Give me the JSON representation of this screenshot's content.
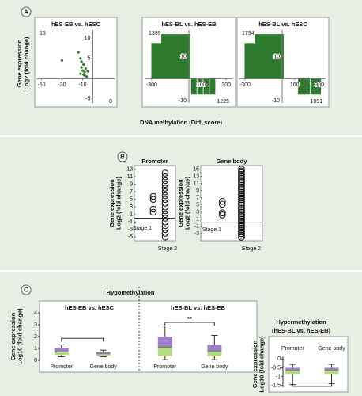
{
  "panels": [
    {
      "label": "A",
      "ylabel": [
        "Gene expression",
        "Log2 (fold change)"
      ],
      "xlabel": "DNA methylation (Diff_score)"
    },
    {
      "label": "B"
    },
    {
      "label": "C"
    }
  ],
  "chart_data": [
    {
      "type": "scatter",
      "title": "hES-EB vs. hESC",
      "xlim": [
        -55,
        22
      ],
      "ylim": [
        -6,
        12
      ],
      "xticks": [
        -50,
        -30,
        -10
      ],
      "yticks": [
        10,
        5,
        -5
      ],
      "color": "#2e7a2e",
      "x": [
        -14,
        -12,
        -11,
        -9,
        -10,
        -8,
        -7,
        -9,
        -6,
        -12,
        -30,
        -5,
        -8,
        -11
      ],
      "y": [
        6.5,
        5,
        4.2,
        3.5,
        2,
        1.6,
        2.5,
        1,
        0.5,
        1.2,
        4.5,
        1.8,
        0.8,
        2.8
      ],
      "annotations": [
        {
          "text": "15",
          "corner": "upper-left"
        },
        {
          "text": "0",
          "corner": "lower-right"
        }
      ]
    },
    {
      "type": "scatter",
      "title": "hES-BL vs. hES-EB",
      "xlim": [
        -350,
        350
      ],
      "ylim": [
        -11,
        22
      ],
      "xticks": [
        -300,
        100,
        300
      ],
      "yticks": [
        10,
        -10
      ],
      "color": "#2e7a2e",
      "x": [
        -280,
        -280,
        -280,
        -280,
        -240,
        -240,
        -240,
        -240,
        -200,
        -200,
        -200,
        -200,
        -200,
        -160,
        -160,
        -160,
        -160,
        -160,
        -120,
        -120,
        -120,
        -120,
        -120,
        -80,
        -80,
        -80,
        -80,
        -80,
        -40,
        -40,
        -40,
        -40,
        -40,
        -10,
        -10,
        -10,
        -10,
        -10,
        40,
        40,
        90,
        90,
        140,
        140,
        190,
        190
      ],
      "y": [
        2,
        6,
        10,
        14,
        2,
        6,
        10,
        14,
        2,
        6,
        10,
        14,
        18,
        2,
        6,
        10,
        14,
        18,
        2,
        6,
        10,
        14,
        18,
        2,
        6,
        10,
        14,
        18,
        2,
        6,
        10,
        14,
        18,
        2,
        6,
        10,
        14,
        18,
        -2,
        -5,
        -2,
        -5,
        -2,
        -5,
        -2,
        -5
      ],
      "annotations": [
        {
          "text": "1399",
          "corner": "upper-left"
        },
        {
          "text": "1225",
          "corner": "lower-right"
        }
      ]
    },
    {
      "type": "scatter",
      "title": "hES-BL vs. hESC",
      "xlim": [
        -350,
        350
      ],
      "ylim": [
        -11,
        22
      ],
      "xticks": [
        -300,
        100,
        300
      ],
      "yticks": [
        10,
        -10
      ],
      "color": "#2e7a2e",
      "x": [
        -280,
        -280,
        -280,
        -280,
        -240,
        -240,
        -240,
        -240,
        -200,
        -200,
        -200,
        -200,
        -200,
        -160,
        -160,
        -160,
        -160,
        -160,
        -120,
        -120,
        -120,
        -120,
        -120,
        -80,
        -80,
        -80,
        -80,
        -80,
        -40,
        -40,
        -40,
        -40,
        -40,
        -10,
        -10,
        -10,
        -10,
        -10,
        150,
        150,
        200,
        200,
        250,
        250,
        290,
        290
      ],
      "y": [
        2,
        6,
        10,
        14,
        2,
        6,
        10,
        14,
        2,
        6,
        10,
        14,
        18,
        2,
        6,
        10,
        14,
        18,
        2,
        6,
        10,
        14,
        18,
        2,
        6,
        10,
        14,
        18,
        2,
        6,
        10,
        14,
        18,
        2,
        6,
        10,
        14,
        18,
        -2,
        -5,
        -2,
        -5,
        -2,
        -5,
        -2,
        -5
      ],
      "annotations": [
        {
          "text": "1734",
          "corner": "upper-left"
        },
        {
          "text": "1091",
          "corner": "lower-right"
        }
      ]
    },
    {
      "type": "strip",
      "title": "Promoter",
      "ylabel": [
        "Gene expression",
        "Log2 (fold change)"
      ],
      "ylim": [
        -6,
        14
      ],
      "yticks": [
        13,
        11,
        9,
        7,
        5,
        3,
        1,
        -1,
        -3,
        -5
      ],
      "categories": [
        "Stage 1",
        "Stage 2"
      ],
      "values": [
        [
          5.8,
          5,
          2.4,
          1.6
        ],
        [
          -5,
          -4,
          -3,
          -2,
          -1,
          0,
          1,
          2,
          3,
          4,
          5,
          6,
          7,
          8,
          9,
          10,
          11,
          12
        ]
      ]
    },
    {
      "type": "strip",
      "title": "Gene body",
      "ylabel": [
        "Gene expression",
        "Log2 (fold change)"
      ],
      "ylim": [
        -5,
        16
      ],
      "yticks": [
        15,
        13,
        11,
        9,
        7,
        5,
        3,
        1,
        -1,
        -3
      ],
      "categories": [
        "Stage 1",
        "Stage 2"
      ],
      "values": [
        [
          6,
          5.2,
          2.8,
          2.2
        ],
        [
          -4,
          -3.5,
          -3,
          -2.5,
          -2,
          -1.5,
          -1,
          -0.5,
          0,
          0.5,
          1,
          1.5,
          2,
          2.5,
          3,
          3.5,
          4,
          4.5,
          5,
          5.5,
          6,
          6.5,
          7,
          7.5,
          8,
          8.5,
          9,
          9.5,
          10,
          10.5,
          11,
          11.5,
          12,
          12.5,
          13,
          13.5,
          14,
          14.5,
          15
        ]
      ]
    },
    {
      "type": "box",
      "title": "Hypomethylation",
      "ylabel": [
        "Gene expression",
        "Log10 (fold change)"
      ],
      "ylim": [
        0,
        4
      ],
      "yticks": [
        0,
        1,
        2,
        3,
        4
      ],
      "colors": [
        "#9b7fc8",
        "#b2dc84"
      ],
      "groups": [
        {
          "title": "hES-EB vs. hESC",
          "categories": [
            "Promoter",
            "Gene body"
          ],
          "boxes": [
            {
              "min": 0.3,
              "q1": 0.45,
              "median": 0.7,
              "q3": 1.0,
              "max": 1.3
            },
            {
              "min": 0.3,
              "q1": 0.4,
              "median": 0.55,
              "q3": 0.7,
              "max": 0.85
            }
          ],
          "bracket": {
            "value": 1.85
          }
        },
        {
          "title": "hES-BL vs. hES-EB",
          "categories": [
            "Promoter",
            "Gene body"
          ],
          "boxes": [
            {
              "min": 0.05,
              "q1": 0.35,
              "median": 1.1,
              "q3": 2.0,
              "max": 2.9
            },
            {
              "min": 0.05,
              "q1": 0.35,
              "median": 0.75,
              "q3": 1.3,
              "max": 2.1
            }
          ],
          "bracket": {
            "value": 3.2,
            "label": "**"
          }
        }
      ]
    },
    {
      "type": "box",
      "title": "Hypermethylation",
      "subtitle": "(hES-BL vs. hES-EB)",
      "ylabel": [
        "Gene expression",
        "Log10 (fold change)"
      ],
      "ylim": [
        -1.6,
        0.15
      ],
      "yticks": [
        0,
        -0.5,
        -1,
        -1.5
      ],
      "colors": [
        "#9b7fc8",
        "#b2dc84"
      ],
      "groups": [
        {
          "categories": [
            "Promoter",
            "Gene body"
          ],
          "boxes": [
            {
              "min": -1.45,
              "q1": -0.85,
              "median": -0.65,
              "q3": -0.5,
              "max": -0.3
            },
            {
              "min": -1.4,
              "q1": -0.85,
              "median": -0.65,
              "q3": -0.5,
              "max": -0.3
            }
          ],
          "bracket": {
            "value": -1.55
          }
        }
      ]
    }
  ]
}
